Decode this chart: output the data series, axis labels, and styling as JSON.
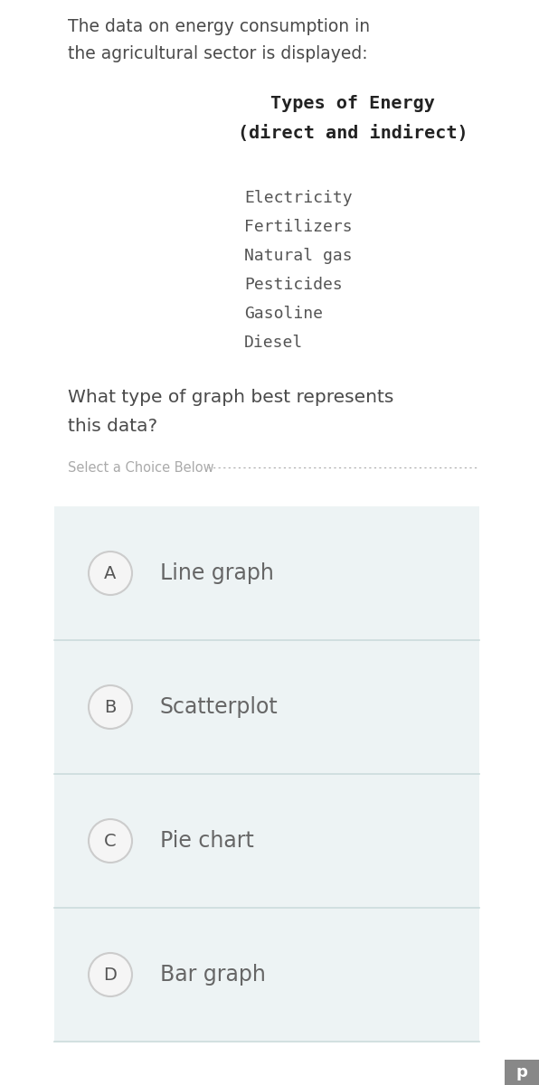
{
  "bg_color": "#ffffff",
  "intro_text_line1": "The data on energy consumption in",
  "intro_text_line2": "the agricultural sector is displayed:",
  "table_title_line1": "Types of Energy",
  "table_title_line2": "(direct and indirect)",
  "energy_items": [
    "Electricity",
    "Fertilizers",
    "Natural gas",
    "Pesticides",
    "Gasoline",
    "Diesel"
  ],
  "question_line1": "What type of graph best represents",
  "question_line2": "this data?",
  "select_label": "Select a Choice Below",
  "choices": [
    {
      "letter": "A",
      "text": "Line graph"
    },
    {
      "letter": "B",
      "text": "Scatterplot"
    },
    {
      "letter": "C",
      "text": "Pie chart"
    },
    {
      "letter": "D",
      "text": "Bar graph"
    }
  ],
  "intro_color": "#4a4a4a",
  "title_color": "#222222",
  "item_color": "#555555",
  "question_color": "#4a4a4a",
  "select_color": "#aaaaaa",
  "choice_bg": "#edf3f4",
  "choice_divider": "#ccdcdc",
  "circle_bg": "#f5f5f5",
  "circle_edge": "#cccccc",
  "letter_color": "#555555",
  "choice_text_color": "#666666",
  "watermark_bg": "#888888",
  "watermark_text": "p",
  "watermark_color": "#ffffff"
}
